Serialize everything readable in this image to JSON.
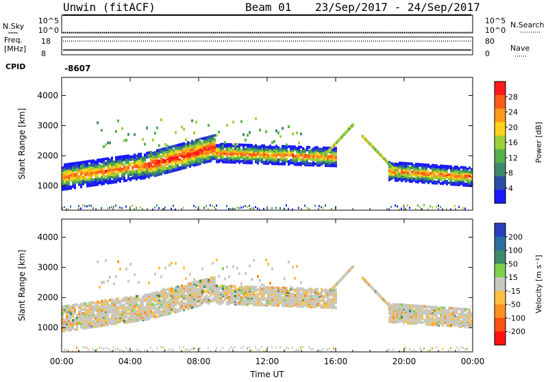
{
  "header": {
    "station": "Unwin (fitACF)",
    "beam": "Beam 01",
    "date_range": "23/Sep/2017 - 24/Sep/2017"
  },
  "noise_panel": {
    "left_label": "N.Sky",
    "right_label": "N.Search",
    "left_ticks": [
      "10^5",
      "10^0"
    ],
    "right_ticks": [
      "10^5",
      "10^0"
    ]
  },
  "freq_panel": {
    "left_label_line1": "Freq.",
    "left_label_line2": "[MHz]",
    "right_label": "Nave",
    "left_ticks": [
      "18",
      "8"
    ],
    "right_ticks": [
      "80",
      "0"
    ]
  },
  "cpid": {
    "label": "CPID",
    "value": "-8607"
  },
  "chart_data": [
    {
      "type": "heatmap",
      "panel": "power",
      "xlabel": "",
      "ylabel": "Slant Range [km]",
      "x_ticks": [
        "00:00",
        "04:00",
        "08:00",
        "12:00",
        "16:00",
        "20:00",
        "00:00"
      ],
      "xlim_hours": [
        0,
        24
      ],
      "ylim": [
        200,
        4600
      ],
      "y_ticks": [
        1000,
        2000,
        3000,
        4000
      ],
      "colorbar": {
        "label": "Power [dB]",
        "ticks": [
          "4",
          "8",
          "12",
          "16",
          "20",
          "24",
          "28"
        ],
        "range": [
          0,
          32
        ],
        "colors": [
          "#1a1aff",
          "#2a4fa8",
          "#3f8a6a",
          "#55b04a",
          "#9cd03a",
          "#ffd21a",
          "#ff9a1a",
          "#ff5a1a",
          "#ff1a1a"
        ]
      }
    },
    {
      "type": "heatmap",
      "panel": "velocity",
      "xlabel": "Time UT",
      "ylabel": "Slant Range [km]",
      "x_ticks": [
        "00:00",
        "04:00",
        "08:00",
        "12:00",
        "16:00",
        "20:00",
        "00:00"
      ],
      "xlim_hours": [
        0,
        24
      ],
      "ylim": [
        200,
        4600
      ],
      "y_ticks": [
        1000,
        2000,
        3000,
        4000
      ],
      "colorbar": {
        "label": "Velocity [m s⁻¹]",
        "ticks": [
          "200",
          "100",
          "50",
          "15",
          "-15",
          "-50",
          "-100",
          "-200"
        ],
        "colors": [
          "#2a3fc0",
          "#2a6fa0",
          "#3f8a6a",
          "#7fd04a",
          "#c8c8c0",
          "#ffc040",
          "#ff9020",
          "#ff5010",
          "#ff1010"
        ]
      }
    }
  ]
}
